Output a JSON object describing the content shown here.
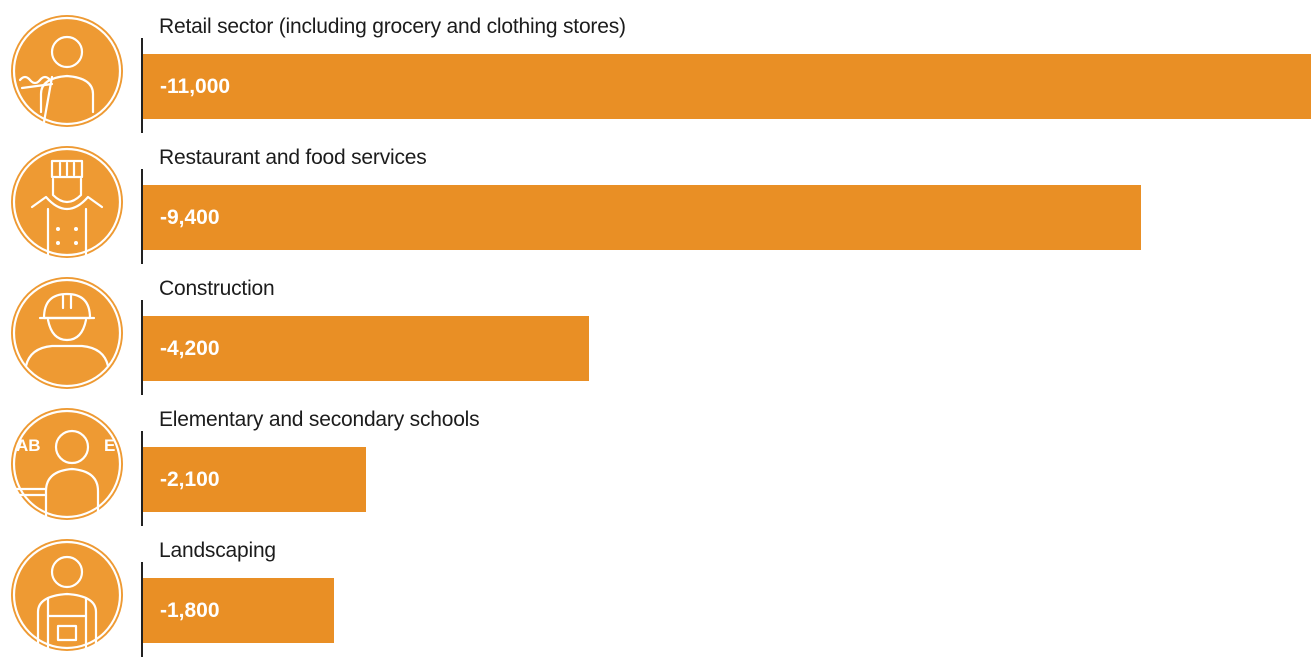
{
  "chart_data": {
    "type": "bar",
    "orientation": "horizontal",
    "categories": [
      "Retail sector (including grocery and clothing stores)",
      "Restaurant and food services",
      "Construction",
      "Elementary and secondary schools",
      "Landscaping"
    ],
    "values": [
      -11000,
      -9400,
      -4200,
      -2100,
      -1800
    ],
    "value_labels": [
      "-11,000",
      "-9,400",
      "-4,200",
      "-2,100",
      "-1,800"
    ],
    "icons": [
      "cashier-icon",
      "chef-icon",
      "construction-worker-icon",
      "teacher-icon",
      "landscaper-icon"
    ],
    "icon_letters": "ABCDE",
    "bar_color": "#e98f25",
    "icon_color": "#ee9a33",
    "grid": false,
    "legend": "none"
  }
}
